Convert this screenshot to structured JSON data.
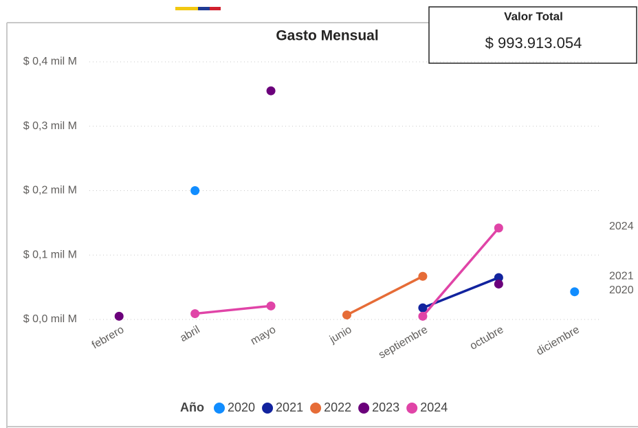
{
  "card": {
    "title": "Valor Total",
    "value": "$ 993.913.054"
  },
  "chart_data": {
    "type": "line",
    "title": "Gasto Mensual",
    "categories": [
      "febrero",
      "abril",
      "mayo",
      "junio",
      "septiembre",
      "octubre",
      "diciembre"
    ],
    "series": [
      {
        "name": "2020",
        "color": "#118DFF",
        "values": [
          null,
          0.2,
          null,
          null,
          null,
          null,
          0.043
        ]
      },
      {
        "name": "2021",
        "color": "#12239E",
        "values": [
          null,
          null,
          null,
          null,
          0.018,
          0.065,
          null
        ]
      },
      {
        "name": "2022",
        "color": "#E66C37",
        "values": [
          null,
          null,
          null,
          0.007,
          0.067,
          null,
          null
        ]
      },
      {
        "name": "2023",
        "color": "#6B007B",
        "values": [
          0.005,
          null,
          0.355,
          null,
          null,
          0.055,
          null
        ]
      },
      {
        "name": "2024",
        "color": "#E044A7",
        "values": [
          null,
          0.009,
          0.021,
          null,
          0.005,
          0.142,
          null
        ]
      }
    ],
    "ylim": [
      0,
      0.4
    ],
    "yticks": [
      {
        "value": 0,
        "label": "$ 0,0 mil M"
      },
      {
        "value": 0.1,
        "label": "$ 0,1 mil M"
      },
      {
        "value": 0.2,
        "label": "$ 0,2 mil M"
      },
      {
        "value": 0.3,
        "label": "$ 0,3 mil M"
      },
      {
        "value": 0.4,
        "label": "$ 0,4 mil M"
      }
    ],
    "grid": true,
    "legend_title": "Año",
    "legend_position": "bottom",
    "end_label_series": [
      0,
      1,
      4
    ]
  }
}
